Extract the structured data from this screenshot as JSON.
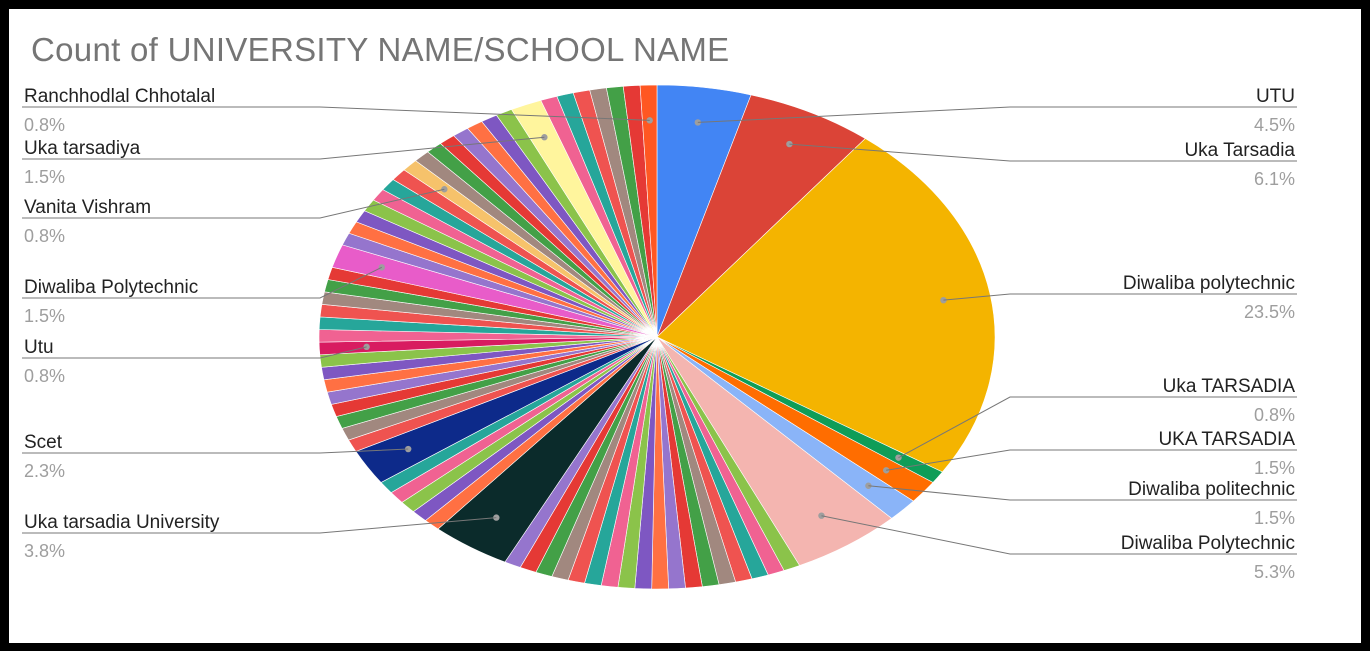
{
  "chart_data": {
    "type": "pie",
    "title": "Count of UNIVERSITY NAME/SCHOOL NAME",
    "labelled_slices": [
      {
        "name": "UTU",
        "percent_label": "4.5%",
        "value": 4.5,
        "color": "#4285f4"
      },
      {
        "name": "Uka Tarsadia",
        "percent_label": "6.1%",
        "value": 6.1,
        "color": "#db4437"
      },
      {
        "name": "Diwaliba polytechnic",
        "percent_label": "23.5%",
        "value": 23.5,
        "color": "#f4b400"
      },
      {
        "name": "Uka TARSADIA",
        "percent_label": "0.8%",
        "value": 0.8,
        "color": "#0f9d58"
      },
      {
        "name": "UKA TARSADIA",
        "percent_label": "1.5%",
        "value": 1.5,
        "color": "#ff6d00"
      },
      {
        "name": "Diwaliba politechnic",
        "percent_label": "1.5%",
        "value": 1.5,
        "color": "#8ab4f8"
      },
      {
        "name": "Diwaliba Polytechnic",
        "percent_label": "5.3%",
        "value": 5.3,
        "color": "#f4b5b0"
      },
      {
        "name": "Uka tarsadia University",
        "percent_label": "3.8%",
        "value": 3.8,
        "color": "#0b2b2b"
      },
      {
        "name": "Scet",
        "percent_label": "2.3%",
        "value": 2.3,
        "color": "#0d2a8a"
      },
      {
        "name": "Utu",
        "percent_label": "0.8%",
        "value": 0.8,
        "color": "#d81b60"
      },
      {
        "name": "Diwaliba Polytechnic",
        "percent_label": "1.5%",
        "value": 1.5,
        "color": "#e85cc9"
      },
      {
        "name": "Vanita Vishram",
        "percent_label": "0.8%",
        "value": 0.8,
        "color": "#f6c26b"
      },
      {
        "name": "Uka tarsadiya",
        "percent_label": "1.5%",
        "value": 1.5,
        "color": "#fff59d"
      },
      {
        "name": "Ranchhodlal Chhotalal",
        "percent_label": "0.8%",
        "value": 0.8,
        "color": "#ff5722"
      }
    ],
    "unlabelled_slice_percent": 0.8,
    "unlabelled_slice_colors": [
      "#8bc34a",
      "#f06292",
      "#26a69a",
      "#ef5350",
      "#a1887f",
      "#43a047",
      "#e53935",
      "#9575cd",
      "#ff7043",
      "#7e57c2"
    ],
    "legend": "none",
    "label_placement": "outside with leader lines"
  }
}
